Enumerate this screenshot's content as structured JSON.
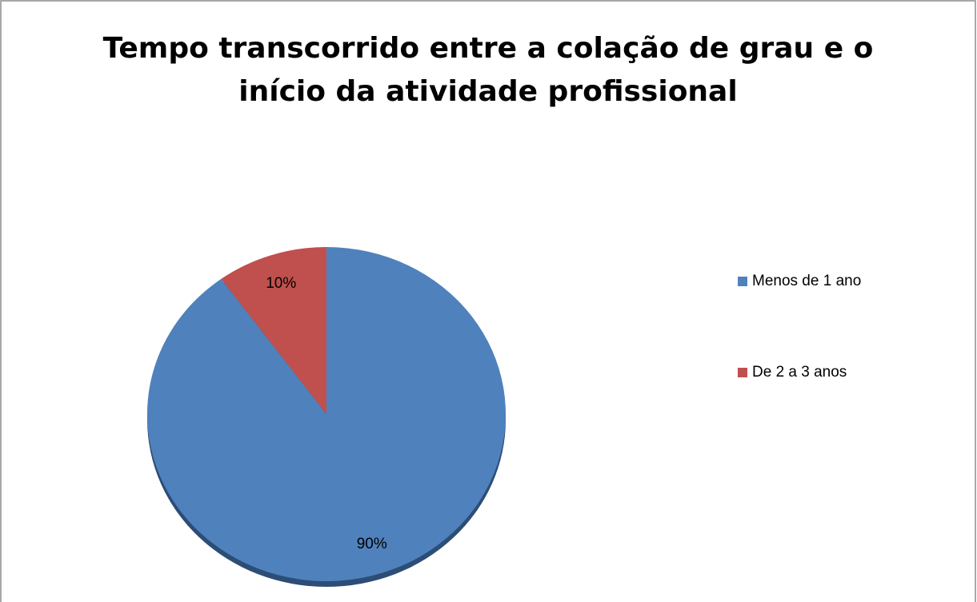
{
  "chart_data": {
    "type": "pie",
    "title": "Tempo transcorrido entre a colação de grau e o início da atividade profissional",
    "categories": [
      "Menos de 1 ano",
      "De 2 a 3 anos"
    ],
    "values": [
      90,
      10
    ],
    "value_labels": [
      "90%",
      "10%"
    ],
    "colors": [
      "#4f81bd",
      "#c0504d"
    ],
    "legend": "right"
  }
}
